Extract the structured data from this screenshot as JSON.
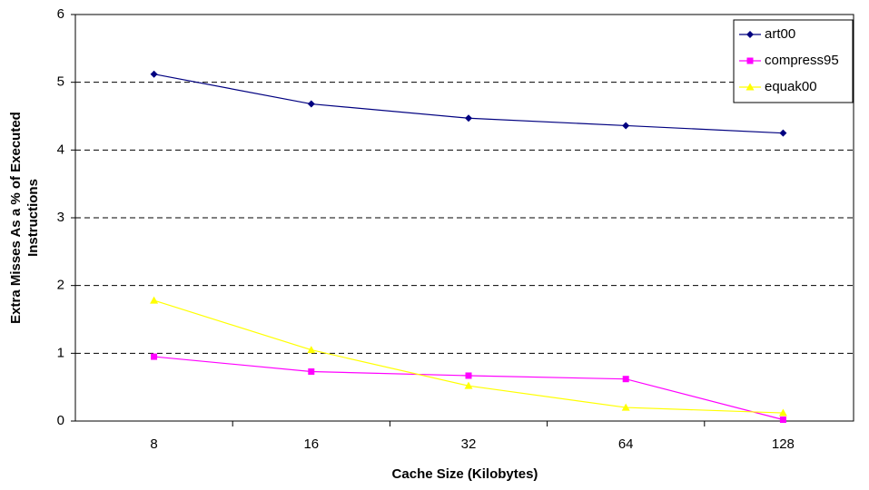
{
  "chart_data": {
    "type": "line",
    "xlabel": "Cache Size (Kilobytes)",
    "ylabel": [
      "Extra Misses As a % of Executed",
      "Instructions"
    ],
    "categories": [
      "8",
      "16",
      "32",
      "64",
      "128"
    ],
    "series": [
      {
        "name": "art00",
        "color": "#000080",
        "marker": "diamond",
        "values": [
          5.12,
          4.68,
          4.47,
          4.36,
          4.25
        ]
      },
      {
        "name": "compress95",
        "color": "#ff00ff",
        "marker": "square",
        "values": [
          0.95,
          0.73,
          0.67,
          0.62,
          0.02
        ]
      },
      {
        "name": "equak00",
        "color": "#ffff00",
        "marker": "triangle",
        "values": [
          1.78,
          1.05,
          0.52,
          0.2,
          0.12
        ]
      }
    ],
    "ylim": [
      0,
      6
    ],
    "yticks": [
      0,
      1,
      2,
      3,
      4,
      5,
      6
    ],
    "grid": true,
    "legend": "top-right"
  }
}
